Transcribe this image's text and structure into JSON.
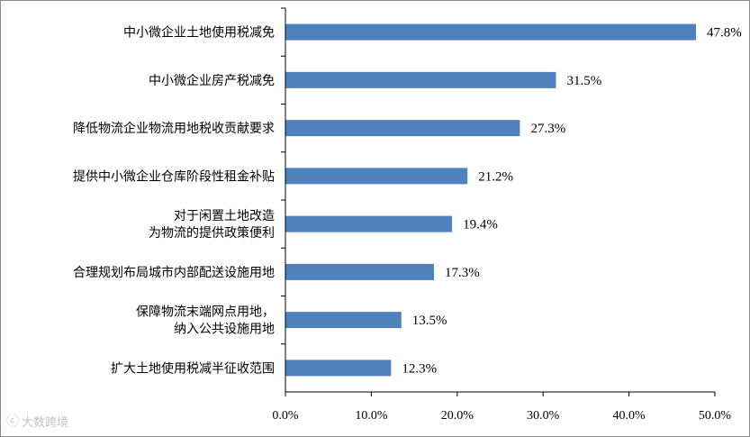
{
  "watermark": {
    "text": "大数跨境",
    "icon": "tilde-logo-icon"
  },
  "chart_data": {
    "type": "bar",
    "orientation": "horizontal",
    "title": "",
    "xlabel": "",
    "ylabel": "",
    "xlim": [
      0,
      50
    ],
    "grid": false,
    "legend": "none",
    "bar_color": "#4f81bd",
    "categories": [
      [
        "中小微企业土地使用税减免"
      ],
      [
        "中小微企业房产税减免"
      ],
      [
        "降低物流企业物流用地税收贡献要求"
      ],
      [
        "提供中小微企业仓库阶段性租金补贴"
      ],
      [
        "对于闲置土地改造",
        "为物流的提供政策便利"
      ],
      [
        "合理规划布局城市内部配送设施用地"
      ],
      [
        "保障物流末端网点用地，",
        "纳入公共设施用地"
      ],
      [
        "扩大土地使用税减半征收范围"
      ]
    ],
    "values": [
      47.8,
      31.5,
      27.3,
      21.2,
      19.4,
      17.3,
      13.5,
      12.3
    ],
    "value_labels": [
      "47.8%",
      "31.5%",
      "27.3%",
      "21.2%",
      "19.4%",
      "17.3%",
      "13.5%",
      "12.3%"
    ],
    "x_ticks": [
      0,
      10,
      20,
      30,
      40,
      50
    ],
    "x_tick_labels": [
      "0.0%",
      "10.0%",
      "20.0%",
      "30.0%",
      "40.0%",
      "50.0%"
    ]
  }
}
